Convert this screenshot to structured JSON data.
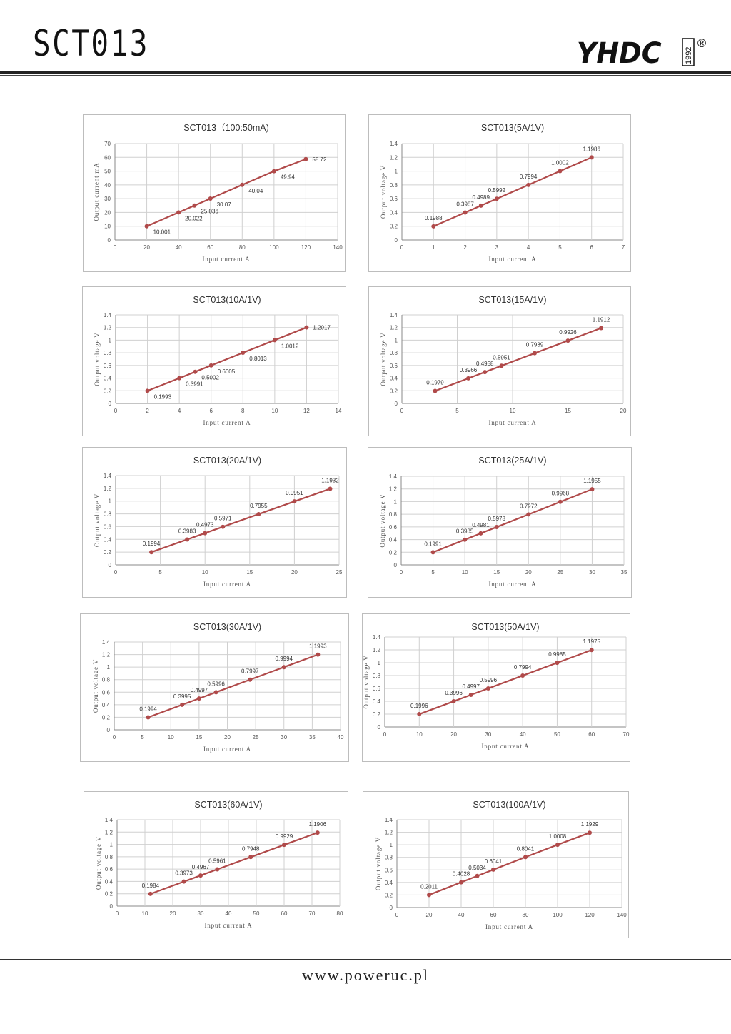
{
  "header": {
    "title": "SCT013",
    "logo_text": "YHDC",
    "logo_year": "1992",
    "logo_mark": "®"
  },
  "footer": {
    "website": "www.poweruc.pl"
  },
  "colors": {
    "series": "#b04a4a",
    "grid": "#d0d0d0",
    "axis": "#888888"
  },
  "chart_data": [
    {
      "type": "line",
      "title": "SCT013（100:50mA)",
      "xlabel": "Input current  A",
      "ylabel": "Output current  mA",
      "xlim": [
        0,
        140
      ],
      "xstep": 20,
      "ylim": [
        0,
        70
      ],
      "ystep": 10,
      "x": [
        20,
        40,
        50,
        60,
        80,
        100,
        120
      ],
      "y": [
        10.001,
        20.022,
        25.036,
        30.07,
        40.04,
        49.94,
        58.72
      ],
      "labels": [
        "10.001",
        "20.022",
        "25.036",
        "30.07",
        "40.04",
        "49.94",
        "58.72"
      ],
      "label_pos": "right",
      "grid": true
    },
    {
      "type": "line",
      "title": "SCT013(5A/1V)",
      "xlabel": "Input current A",
      "ylabel": "Output voltage  V",
      "xlim": [
        0,
        7
      ],
      "xstep": 1,
      "ylim": [
        0,
        1.4
      ],
      "ystep": 0.2,
      "x": [
        1,
        2,
        2.5,
        3,
        4,
        5,
        6
      ],
      "y": [
        0.1988,
        0.3987,
        0.4989,
        0.5992,
        0.7994,
        1.0002,
        1.1986
      ],
      "labels": [
        "0.1988",
        "0.3987",
        "0.4989",
        "0.5992",
        "0.7994",
        "1.0002",
        "1.1986"
      ],
      "label_pos": "above",
      "grid": true
    },
    {
      "type": "line",
      "title": "SCT013(10A/1V)",
      "xlabel": "Input current  A",
      "ylabel": "Output voltage  V",
      "xlim": [
        0,
        14
      ],
      "xstep": 2,
      "ylim": [
        0,
        1.4
      ],
      "ystep": 0.2,
      "x": [
        2,
        4,
        5,
        6,
        8,
        10,
        12
      ],
      "y": [
        0.1993,
        0.3991,
        0.5002,
        0.6005,
        0.8013,
        1.0012,
        1.2017
      ],
      "labels": [
        "0.1993",
        "0.3991",
        "0.5002",
        "0.6005",
        "0.8013",
        "1.0012",
        "1.2017"
      ],
      "label_pos": "right",
      "grid": true
    },
    {
      "type": "line",
      "title": "SCT013(15A/1V)",
      "xlabel": "Input current  A",
      "ylabel": "Output voltage  V",
      "xlim": [
        0,
        20
      ],
      "xstep": 5,
      "ylim": [
        0,
        1.4
      ],
      "ystep": 0.2,
      "x": [
        3,
        6,
        7.5,
        9,
        12,
        15,
        18
      ],
      "y": [
        0.1979,
        0.3966,
        0.4958,
        0.5951,
        0.7939,
        0.9926,
        1.1912
      ],
      "labels": [
        "0.1979",
        "0.3966",
        "0.4958",
        "0.5951",
        "0.7939",
        "0.9926",
        "1.1912"
      ],
      "label_pos": "above",
      "grid": true
    },
    {
      "type": "line",
      "title": "SCT013(20A/1V)",
      "xlabel": "Input current  A",
      "ylabel": "Output voltage  V",
      "xlim": [
        0,
        25
      ],
      "xstep": 5,
      "ylim": [
        0,
        1.4
      ],
      "ystep": 0.2,
      "x": [
        4,
        8,
        10,
        12,
        16,
        20,
        24
      ],
      "y": [
        0.1994,
        0.3983,
        0.4973,
        0.5971,
        0.7955,
        0.9951,
        1.1932
      ],
      "labels": [
        "0.1994",
        "0.3983",
        "0.4973",
        "0.5971",
        "0.7955",
        "0.9951",
        "1.1932"
      ],
      "label_pos": "above",
      "grid": true
    },
    {
      "type": "line",
      "title": "SCT013(25A/1V)",
      "xlabel": "Input current  A",
      "ylabel": "Output voltage  V",
      "xlim": [
        0,
        35
      ],
      "xstep": 5,
      "ylim": [
        0,
        1.4
      ],
      "ystep": 0.2,
      "x": [
        5,
        10,
        12.5,
        15,
        20,
        25,
        30
      ],
      "y": [
        0.1991,
        0.3985,
        0.4981,
        0.5978,
        0.7972,
        0.9968,
        1.1955
      ],
      "labels": [
        "0.1991",
        "0.3985",
        "0.4981",
        "0.5978",
        "0.7972",
        "0.9968",
        "1.1955"
      ],
      "label_pos": "above",
      "grid": true
    },
    {
      "type": "line",
      "title": "SCT013(30A/1V)",
      "xlabel": "Input current  A",
      "ylabel": "Output voltage  V",
      "xlim": [
        0,
        40
      ],
      "xstep": 5,
      "ylim": [
        0,
        1.4
      ],
      "ystep": 0.2,
      "x": [
        6,
        12,
        15,
        18,
        24,
        30,
        36
      ],
      "y": [
        0.1994,
        0.3995,
        0.4997,
        0.5996,
        0.7997,
        0.9994,
        1.1993
      ],
      "labels": [
        "0.1994",
        "0.3995",
        "0.4997",
        "0.5996",
        "0.7997",
        "0.9994",
        "1.1993"
      ],
      "label_pos": "above",
      "grid": true
    },
    {
      "type": "line",
      "title": "SCT013(50A/1V)",
      "xlabel": "Input current  A",
      "ylabel": "Output voltage  V",
      "xlim": [
        0,
        70
      ],
      "xstep": 10,
      "ylim": [
        0,
        1.4
      ],
      "ystep": 0.2,
      "x": [
        10,
        20,
        25,
        30,
        40,
        50,
        60
      ],
      "y": [
        0.1996,
        0.3996,
        0.4997,
        0.5996,
        0.7994,
        0.9985,
        1.1975
      ],
      "labels": [
        "0.1996",
        "0.3996",
        "0.4997",
        "0.5996",
        "0.7994",
        "0.9985",
        "1.1975"
      ],
      "label_pos": "above",
      "grid": true
    },
    {
      "type": "line",
      "title": "SCT013(60A/1V)",
      "xlabel": "Input current  A",
      "ylabel": "Output voltage  V",
      "xlim": [
        0,
        80
      ],
      "xstep": 10,
      "ylim": [
        0,
        1.4
      ],
      "ystep": 0.2,
      "x": [
        12,
        24,
        30,
        36,
        48,
        60,
        72
      ],
      "y": [
        0.1984,
        0.3973,
        0.4967,
        0.5961,
        0.7948,
        0.9929,
        1.1906
      ],
      "labels": [
        "0.1984",
        "0.3973",
        "0.4967",
        "0.5961",
        "0.7948",
        "0.9929",
        "1.1906"
      ],
      "label_pos": "above",
      "grid": true
    },
    {
      "type": "line",
      "title": "SCT013(100A/1V)",
      "xlabel": "Input current  A",
      "ylabel": "Output voltage  V",
      "xlim": [
        0,
        140
      ],
      "xstep": 20,
      "ylim": [
        0,
        1.4
      ],
      "ystep": 0.2,
      "x": [
        20,
        40,
        50,
        60,
        80,
        100,
        120
      ],
      "y": [
        0.2011,
        0.4028,
        0.5034,
        0.6041,
        0.8041,
        1.0008,
        1.1929
      ],
      "labels": [
        "0.2011",
        "0.4028",
        "0.5034",
        "0.6041",
        "0.8041",
        "1.0008",
        "1.1929"
      ],
      "label_pos": "above",
      "grid": true
    }
  ]
}
